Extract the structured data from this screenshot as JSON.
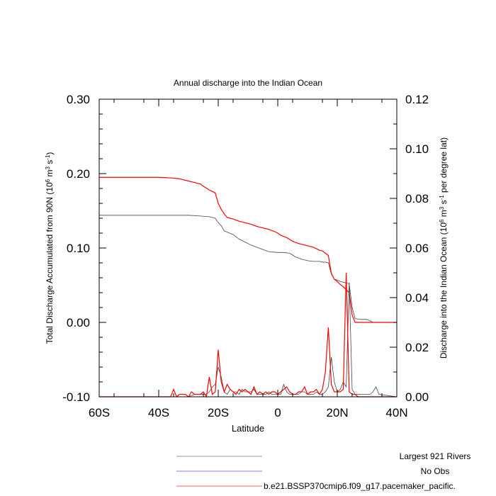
{
  "chart_data": {
    "type": "line",
    "title": "Annual discharge into the Indian Ocean",
    "xlabel": "Latitude",
    "ylabel_left_parts": [
      "Total Discharge Accumulated from 90N (10",
      "6",
      " m",
      "3",
      " s",
      "-1",
      ")"
    ],
    "ylabel_right_parts": [
      "Discharge into the Indian Ocean (10",
      "6",
      " m",
      "3",
      " s",
      "-1",
      " per degree lat)"
    ],
    "xlim": [
      -60,
      40
    ],
    "ylim_left": [
      -0.1,
      0.3
    ],
    "ylim_right": [
      0.0,
      0.12
    ],
    "x_ticks": [
      {
        "value": -60,
        "label": "60S"
      },
      {
        "value": -40,
        "label": "40S"
      },
      {
        "value": -20,
        "label": "20S"
      },
      {
        "value": 0,
        "label": "0"
      },
      {
        "value": 20,
        "label": "20N"
      },
      {
        "value": 40,
        "label": "40N"
      }
    ],
    "y_ticks_left": [
      {
        "value": -0.1,
        "label": "-0.10"
      },
      {
        "value": 0.0,
        "label": "0.00"
      },
      {
        "value": 0.1,
        "label": "0.10"
      },
      {
        "value": 0.2,
        "label": "0.20"
      },
      {
        "value": 0.3,
        "label": "0.30"
      }
    ],
    "y_ticks_right": [
      {
        "value": 0.0,
        "label": "0.00"
      },
      {
        "value": 0.02,
        "label": "0.02"
      },
      {
        "value": 0.04,
        "label": "0.04"
      },
      {
        "value": 0.06,
        "label": "0.06"
      },
      {
        "value": 0.08,
        "label": "0.08"
      },
      {
        "value": 0.1,
        "label": "0.10"
      },
      {
        "value": 0.12,
        "label": "0.12"
      }
    ],
    "series": [
      {
        "name": "Largest 921 Rivers",
        "color": "#444444",
        "axis": "left",
        "x": [
          -60,
          -30,
          -26,
          -23,
          -21,
          -20,
          -19,
          -18,
          -15,
          -13,
          -11,
          -9,
          -7,
          -5,
          -3,
          0,
          2,
          4,
          6,
          8,
          10,
          12,
          13,
          14,
          15,
          16,
          17,
          18,
          19,
          20,
          21,
          22,
          23,
          24,
          25,
          26,
          28,
          30,
          32,
          35,
          40
        ],
        "y": [
          0.144,
          0.144,
          0.143,
          0.142,
          0.14,
          0.134,
          0.13,
          0.123,
          0.118,
          0.112,
          0.108,
          0.104,
          0.101,
          0.098,
          0.095,
          0.094,
          0.094,
          0.093,
          0.088,
          0.085,
          0.083,
          0.082,
          0.082,
          0.082,
          0.081,
          0.081,
          0.08,
          0.065,
          0.058,
          0.057,
          0.055,
          0.054,
          0.053,
          0.052,
          0.02,
          0.005,
          0.004,
          0.004,
          0.0,
          0.0,
          0.0
        ]
      },
      {
        "name": "No Obs",
        "color": "#7b7bff",
        "axis": "right",
        "x": [],
        "y": []
      },
      {
        "name": "b.e21.BSSP370cmip6.f09_g17.pacemaker_pacific.",
        "color": "#ff0000",
        "axis": "left",
        "x": [
          -60,
          -45,
          -40,
          -35,
          -33,
          -31,
          -30,
          -28,
          -26,
          -25,
          -23,
          -22,
          -21,
          -20,
          -19,
          -18,
          -17,
          -15,
          -13,
          -11,
          -9,
          -7,
          -5,
          -3,
          -1,
          0,
          1,
          3,
          5,
          7,
          9,
          11,
          12,
          13,
          14,
          15,
          16,
          17,
          18,
          19,
          20,
          21,
          22,
          23,
          24,
          25,
          26,
          28,
          30,
          32,
          35,
          40
        ],
        "y": [
          0.195,
          0.195,
          0.195,
          0.194,
          0.193,
          0.191,
          0.19,
          0.188,
          0.186,
          0.183,
          0.178,
          0.176,
          0.174,
          0.16,
          0.152,
          0.146,
          0.141,
          0.139,
          0.136,
          0.134,
          0.132,
          0.129,
          0.127,
          0.125,
          0.122,
          0.12,
          0.117,
          0.114,
          0.109,
          0.106,
          0.104,
          0.102,
          0.101,
          0.099,
          0.097,
          0.096,
          0.093,
          0.09,
          0.066,
          0.058,
          0.055,
          0.051,
          0.048,
          0.044,
          0.04,
          0.01,
          0.0,
          0.0,
          0.0,
          0.0,
          0.0,
          0.0
        ]
      },
      {
        "name": "Largest 921 Rivers (per degree lat)",
        "color": "#444444",
        "axis": "right",
        "x": [
          -60,
          -30,
          -28,
          -26,
          -24,
          -23,
          -22,
          -21,
          -20,
          -19,
          -18,
          -17,
          -16,
          -15,
          -14,
          -13,
          -12,
          -11,
          -10,
          -9,
          -8,
          -7,
          -6,
          -5,
          -4,
          -3,
          -2,
          -1,
          0,
          1,
          2,
          3,
          4,
          5,
          6,
          7,
          8,
          9,
          10,
          11,
          12,
          13,
          14,
          15,
          16,
          17,
          18,
          19,
          20,
          21,
          22,
          23,
          24,
          25,
          26,
          27,
          28,
          29,
          30,
          31,
          32,
          33,
          34,
          40
        ],
        "y": [
          0,
          0,
          0.001,
          0.001,
          0.001,
          0.002,
          0.004,
          0.005,
          0.012,
          0.008,
          0.002,
          0.001,
          0.003,
          0.002,
          0.002,
          0.001,
          0.003,
          0.002,
          0.002,
          0.002,
          0.003,
          0.001,
          0.001,
          0.001,
          0.001,
          0.002,
          0.001,
          0.001,
          0.001,
          0.001,
          0.005,
          0.002,
          0.001,
          0.001,
          0.001,
          0.001,
          0.002,
          0.002,
          0.001,
          0.001,
          0.001,
          0.002,
          0.001,
          0.001,
          0.002,
          0.004,
          0.016,
          0.006,
          0.002,
          0.003,
          0.006,
          0.004,
          0.046,
          0.003,
          0.001,
          0.001,
          0.001,
          0.001,
          0.001,
          0.001,
          0.002,
          0.004,
          0.001,
          0
        ]
      },
      {
        "name": "b.e21.BSSP370cmip6.f09_g17.pacemaker_pacific. (per degree lat)",
        "color": "#ff0000",
        "axis": "right",
        "x": [
          -60,
          -36,
          -35,
          -34,
          -33,
          -31,
          -30,
          -29,
          -28,
          -27,
          -26,
          -25,
          -24,
          -23,
          -22,
          -21,
          -20,
          -19,
          -18,
          -17,
          -16,
          -15,
          -14,
          -13,
          -12,
          -11,
          -10,
          -9,
          -8,
          -7,
          -6,
          -5,
          -4,
          -3,
          -2,
          -1,
          0,
          1,
          2,
          3,
          4,
          5,
          6,
          7,
          8,
          9,
          10,
          11,
          12,
          13,
          14,
          15,
          16,
          17,
          18,
          19,
          20,
          21,
          22,
          23,
          24,
          25,
          26,
          27,
          40
        ],
        "y": [
          0,
          0,
          0.003,
          0.0,
          0.001,
          0.001,
          0.0,
          0.002,
          0.001,
          0.001,
          0.001,
          0.002,
          0.0,
          0.008,
          0.001,
          0.002,
          0.019,
          0.006,
          0.002,
          0.005,
          0.003,
          0.002,
          0.001,
          0.003,
          0.002,
          0.003,
          0.002,
          0.001,
          0.004,
          0.001,
          0.002,
          0.001,
          0.002,
          0.001,
          0.002,
          0.002,
          0.001,
          0.002,
          0.003,
          0.004,
          0.002,
          0.001,
          0.001,
          0.002,
          0.002,
          0.004,
          0.001,
          0.002,
          0.002,
          0.003,
          0.001,
          0.003,
          0.01,
          0.028,
          0.005,
          0.002,
          0.002,
          0.002,
          0.003,
          0.05,
          0.002,
          0.001,
          0.001,
          0.0,
          0
        ]
      }
    ],
    "legend": {
      "placement": "bottom",
      "entries": [
        {
          "label": "Largest 921 Rivers",
          "color": "#999999"
        },
        {
          "label": "No Obs",
          "color": "#7b7bff"
        },
        {
          "label": "b.e21.BSSP370cmip6.f09_g17.pacemaker_pacific.",
          "color": "#ff6666"
        }
      ]
    },
    "grid": false
  }
}
